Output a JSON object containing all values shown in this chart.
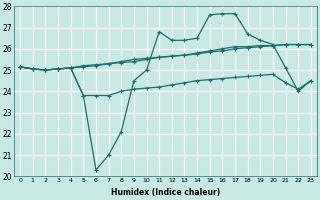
{
  "xlabel": "Humidex (Indice chaleur)",
  "xlim": [
    -0.5,
    23.5
  ],
  "ylim": [
    20,
    28
  ],
  "yticks": [
    20,
    21,
    22,
    23,
    24,
    25,
    26,
    27,
    28
  ],
  "xticks": [
    0,
    1,
    2,
    3,
    4,
    5,
    6,
    7,
    8,
    9,
    10,
    11,
    12,
    13,
    14,
    15,
    16,
    17,
    18,
    19,
    20,
    21,
    22,
    23
  ],
  "bg_color": "#c8e8e4",
  "line_color": "#1a6e6e",
  "grid_color": "#ffffff",
  "series": {
    "line1": {
      "x": [
        0,
        1,
        2,
        3,
        4,
        5,
        6,
        7,
        8,
        9,
        10,
        11,
        12,
        13,
        14,
        15,
        16,
        17,
        18,
        19,
        20,
        21,
        22,
        23
      ],
      "y": [
        25.15,
        25.05,
        25.0,
        25.05,
        25.1,
        25.15,
        25.2,
        25.3,
        25.4,
        25.5,
        25.55,
        25.6,
        25.65,
        25.7,
        25.75,
        25.85,
        25.9,
        26.0,
        26.05,
        26.1,
        26.15,
        26.2,
        26.2,
        26.2
      ]
    },
    "line2": {
      "x": [
        0,
        1,
        2,
        3,
        4,
        5,
        6,
        7,
        8,
        9,
        10,
        11,
        12,
        13,
        14,
        15,
        16,
        17,
        18,
        19,
        20,
        21,
        22,
        23
      ],
      "y": [
        25.15,
        25.05,
        25.0,
        25.05,
        25.1,
        25.2,
        25.25,
        25.3,
        25.35,
        25.4,
        25.5,
        25.6,
        25.65,
        25.7,
        25.8,
        25.9,
        26.0,
        26.1,
        26.1,
        26.15,
        26.15,
        26.2,
        26.2,
        26.2
      ]
    },
    "line3_bottom": {
      "x": [
        0,
        1,
        2,
        3,
        4,
        5,
        6,
        7,
        8,
        9,
        10,
        11,
        12,
        13,
        14,
        15,
        16,
        17,
        18,
        19,
        20,
        21,
        22,
        23
      ],
      "y": [
        25.15,
        25.05,
        25.0,
        25.05,
        25.1,
        23.8,
        23.8,
        23.8,
        24.0,
        24.1,
        24.15,
        24.2,
        24.3,
        24.4,
        24.5,
        24.55,
        24.6,
        24.65,
        24.7,
        24.75,
        24.8,
        24.4,
        24.1,
        24.5
      ]
    },
    "line3_volatile": {
      "x": [
        0,
        1,
        2,
        3,
        4,
        5,
        6,
        7,
        8,
        9,
        10,
        11,
        12,
        13,
        14,
        15,
        16,
        17,
        18,
        19,
        20,
        21,
        22,
        23
      ],
      "y": [
        25.15,
        25.05,
        25.0,
        25.05,
        25.1,
        23.8,
        20.3,
        21.0,
        22.1,
        24.5,
        25.0,
        26.8,
        26.4,
        26.4,
        26.5,
        27.6,
        27.65,
        27.65,
        26.7,
        26.4,
        26.2,
        25.1,
        24.0,
        24.5
      ]
    }
  }
}
